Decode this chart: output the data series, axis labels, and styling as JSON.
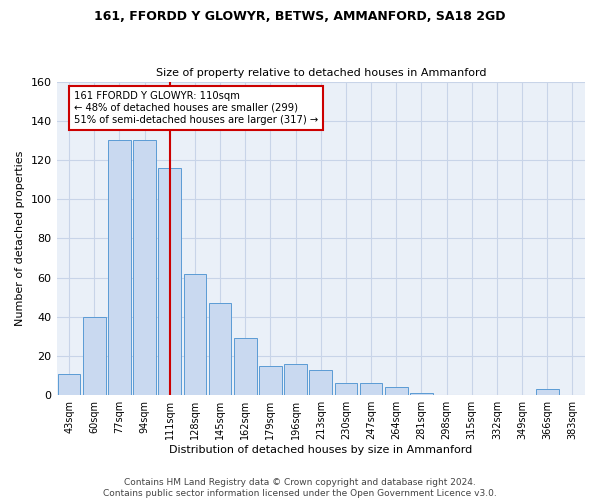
{
  "title": "161, FFORDD Y GLOWYR, BETWS, AMMANFORD, SA18 2GD",
  "subtitle": "Size of property relative to detached houses in Ammanford",
  "xlabel": "Distribution of detached houses by size in Ammanford",
  "ylabel": "Number of detached properties",
  "categories": [
    "43sqm",
    "60sqm",
    "77sqm",
    "94sqm",
    "111sqm",
    "128sqm",
    "145sqm",
    "162sqm",
    "179sqm",
    "196sqm",
    "213sqm",
    "230sqm",
    "247sqm",
    "264sqm",
    "281sqm",
    "298sqm",
    "315sqm",
    "332sqm",
    "349sqm",
    "366sqm",
    "383sqm"
  ],
  "values": [
    11,
    40,
    130,
    130,
    116,
    62,
    47,
    29,
    15,
    16,
    13,
    6,
    6,
    4,
    1,
    0,
    0,
    0,
    0,
    3,
    0
  ],
  "bar_color": "#c9d9f0",
  "bar_edge_color": "#5b9bd5",
  "red_line_index": 4,
  "annotation_text": "161 FFORDD Y GLOWYR: 110sqm\n← 48% of detached houses are smaller (299)\n51% of semi-detached houses are larger (317) →",
  "annotation_box_color": "white",
  "annotation_box_edge_color": "#cc0000",
  "red_line_color": "#cc0000",
  "footer": "Contains HM Land Registry data © Crown copyright and database right 2024.\nContains public sector information licensed under the Open Government Licence v3.0.",
  "ylim": [
    0,
    160
  ],
  "yticks": [
    0,
    20,
    40,
    60,
    80,
    100,
    120,
    140,
    160
  ],
  "grid_color": "#c8d4e8",
  "bg_color": "#eaf0f8",
  "title_fontsize": 9,
  "subtitle_fontsize": 8,
  "ylabel_fontsize": 8,
  "xlabel_fontsize": 8,
  "tick_fontsize": 7,
  "footer_fontsize": 6.5
}
